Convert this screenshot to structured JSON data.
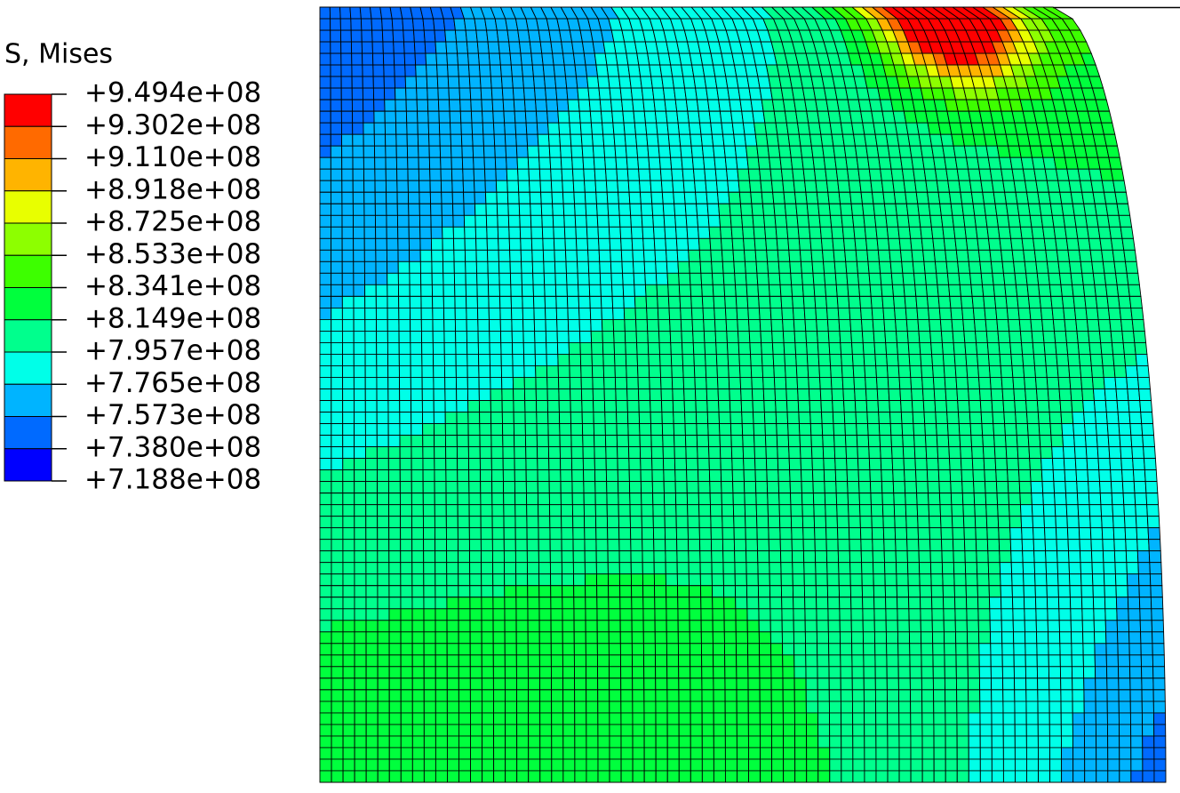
{
  "legend": {
    "title": "S, Mises",
    "levels": [
      "+9.494e+08",
      "+9.302e+08",
      "+9.110e+08",
      "+8.918e+08",
      "+8.725e+08",
      "+8.533e+08",
      "+8.341e+08",
      "+8.149e+08",
      "+7.957e+08",
      "+7.765e+08",
      "+7.573e+08",
      "+7.380e+08",
      "+7.188e+08"
    ],
    "colors": [
      "#ff0000",
      "#ff6a00",
      "#ffb400",
      "#e8ff00",
      "#8dff00",
      "#3dff00",
      "#00ff3d",
      "#00ff8d",
      "#00ffe8",
      "#00b4ff",
      "#006aff",
      "#0000ff"
    ]
  }
}
